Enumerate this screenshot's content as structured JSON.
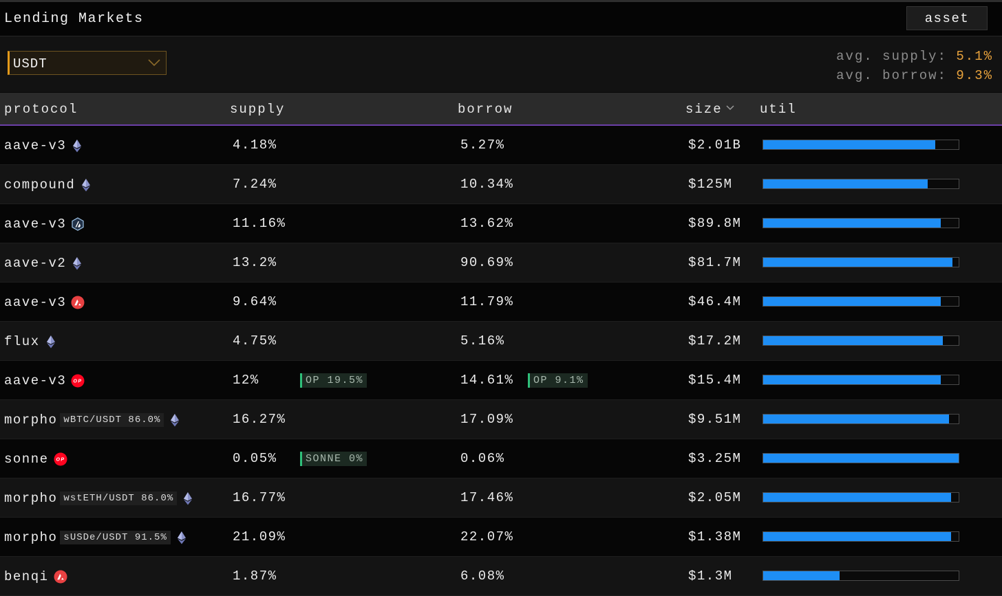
{
  "header": {
    "title": "Lending Markets",
    "asset_button": "asset"
  },
  "filter": {
    "selected_asset": "USDT",
    "avg_supply_label": "avg. supply:",
    "avg_supply_value": "5.1%",
    "avg_borrow_label": "avg. borrow:",
    "avg_borrow_value": "9.3%"
  },
  "table": {
    "columns": {
      "protocol": "protocol",
      "supply": "supply",
      "borrow": "borrow",
      "size": "size",
      "util": "util"
    },
    "sort_column": "size",
    "rows": [
      {
        "protocol": "aave-v3",
        "chain": "ethereum",
        "supply": "4.18%",
        "borrow": "5.27%",
        "size": "$2.01B",
        "util": 0.88
      },
      {
        "protocol": "compound",
        "chain": "ethereum",
        "supply": "7.24%",
        "borrow": "10.34%",
        "size": "$125M",
        "util": 0.84
      },
      {
        "protocol": "aave-v3",
        "chain": "arbitrum",
        "supply": "11.16%",
        "borrow": "13.62%",
        "size": "$89.8M",
        "util": 0.91
      },
      {
        "protocol": "aave-v2",
        "chain": "ethereum",
        "supply": "13.2%",
        "borrow": "90.69%",
        "size": "$81.7M",
        "util": 0.97
      },
      {
        "protocol": "aave-v3",
        "chain": "avalanche",
        "supply": "9.64%",
        "borrow": "11.79%",
        "size": "$46.4M",
        "util": 0.91
      },
      {
        "protocol": "flux",
        "chain": "ethereum",
        "supply": "4.75%",
        "borrow": "5.16%",
        "size": "$17.2M",
        "util": 0.92
      },
      {
        "protocol": "aave-v3",
        "chain": "optimism",
        "supply": "12%",
        "supply_reward": "OP 19.5%",
        "borrow": "14.61%",
        "borrow_reward": "OP 9.1%",
        "size": "$15.4M",
        "util": 0.91
      },
      {
        "protocol": "morpho",
        "pair": "wBTC/USDT 86.0%",
        "chain": "ethereum",
        "supply": "16.27%",
        "borrow": "17.09%",
        "size": "$9.51M",
        "util": 0.95
      },
      {
        "protocol": "sonne",
        "chain": "optimism",
        "supply": "0.05%",
        "supply_reward": "SONNE 0%",
        "borrow": "0.06%",
        "size": "$3.25M",
        "util": 1.0
      },
      {
        "protocol": "morpho",
        "pair": "wstETH/USDT 86.0%",
        "chain": "ethereum",
        "supply": "16.77%",
        "borrow": "17.46%",
        "size": "$2.05M",
        "util": 0.96
      },
      {
        "protocol": "morpho",
        "pair": "sUSDe/USDT 91.5%",
        "chain": "ethereum",
        "supply": "21.09%",
        "borrow": "22.07%",
        "size": "$1.38M",
        "util": 0.96
      },
      {
        "protocol": "benqi",
        "chain": "avalanche",
        "supply": "1.87%",
        "borrow": "6.08%",
        "size": "$1.3M",
        "util": 0.39
      }
    ]
  },
  "colors": {
    "accent": "#e8a23c",
    "util_bar": "#1e8ef5",
    "header_underline": "#6c3fa8",
    "reward_border": "#2fbf7a"
  }
}
